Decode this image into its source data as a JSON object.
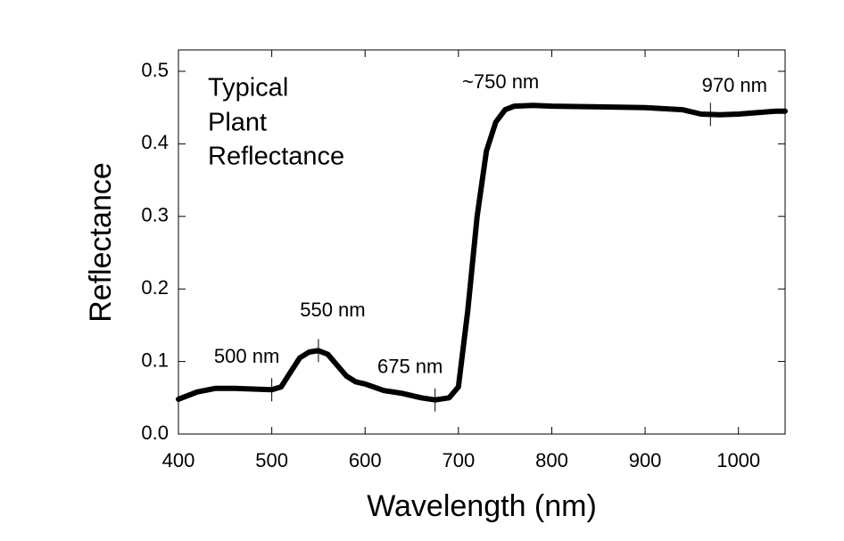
{
  "chart_data": {
    "type": "line",
    "xlabel": "Wavelength (nm)",
    "ylabel": "Reflectance",
    "text_block": [
      "Typical",
      "Plant",
      "Reflectance"
    ],
    "x": [
      400,
      420,
      440,
      460,
      480,
      500,
      510,
      520,
      530,
      540,
      550,
      560,
      570,
      580,
      590,
      600,
      620,
      640,
      660,
      675,
      690,
      700,
      710,
      720,
      730,
      740,
      750,
      760,
      780,
      800,
      850,
      900,
      940,
      960,
      980,
      1000,
      1020,
      1040,
      1050
    ],
    "series": [
      {
        "name": "Reflectance",
        "color": "#000000",
        "values": [
          0.048,
          0.058,
          0.063,
          0.063,
          0.062,
          0.061,
          0.065,
          0.085,
          0.105,
          0.113,
          0.115,
          0.11,
          0.095,
          0.08,
          0.072,
          0.069,
          0.06,
          0.056,
          0.05,
          0.047,
          0.05,
          0.065,
          0.17,
          0.3,
          0.39,
          0.43,
          0.447,
          0.452,
          0.453,
          0.452,
          0.451,
          0.45,
          0.447,
          0.441,
          0.44,
          0.441,
          0.443,
          0.445,
          0.445
        ]
      }
    ],
    "annotations": [
      {
        "text": "500 nm",
        "x": 500,
        "marker": true
      },
      {
        "text": "550 nm",
        "x": 550,
        "marker": true
      },
      {
        "text": "675 nm",
        "x": 675,
        "marker": true
      },
      {
        "text": "~750 nm",
        "x": 750,
        "marker": false
      },
      {
        "text": "970 nm",
        "x": 970,
        "marker": true
      }
    ],
    "xlim": [
      400,
      1050
    ],
    "xticks": [
      400,
      500,
      600,
      700,
      800,
      900,
      1000
    ],
    "ylim": [
      0,
      0.5
    ],
    "yticks": [
      {
        "value": 0,
        "label": "0.0"
      },
      0.1,
      0.2,
      0.3,
      0.4,
      0.5
    ]
  }
}
